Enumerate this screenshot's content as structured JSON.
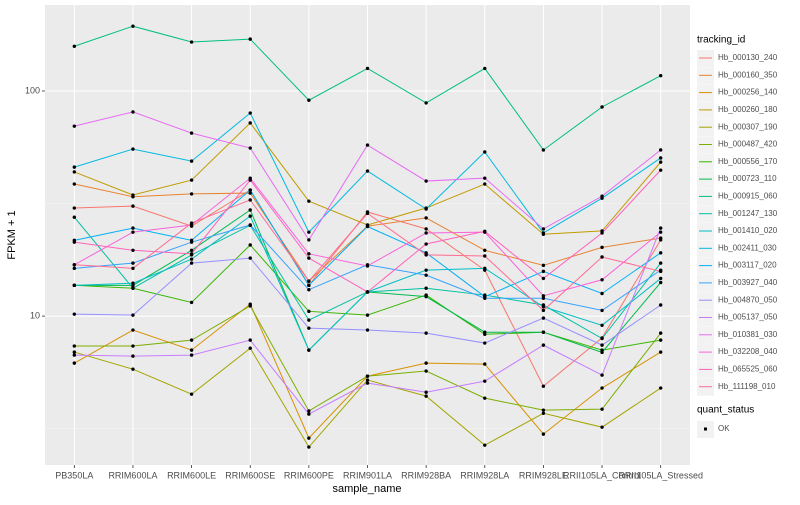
{
  "chart_data": {
    "type": "line",
    "x_label": "sample_name",
    "y_label": "FPKM + 1",
    "legend_title": "tracking_id",
    "legend_position": "right",
    "log_y": true,
    "grid": true,
    "ylim": [
      2.18,
      241
    ],
    "yticks": [
      10,
      100
    ],
    "point_legend": {
      "title": "quant_status",
      "levels": [
        "OK"
      ],
      "color": "#000000"
    },
    "categories": [
      "PB350LA",
      "RRIM600LA",
      "RRIM600LE",
      "RRIM600SE",
      "RRIM600PE",
      "RRIM901LA",
      "RRIM928BA",
      "RRIM928LA",
      "RRIM928LE",
      "RRII105LA_Control",
      "RRII105LA_Stressed"
    ],
    "series": [
      {
        "name": "Hb_000130_240",
        "color": "#F8766D",
        "values": [
          30.2,
          30.8,
          25.1,
          36.3,
          13.7,
          29,
          24.4,
          16,
          4.88,
          8,
          21.8
        ]
      },
      {
        "name": "Hb_000160_350",
        "color": "#EA8331",
        "values": [
          38.6,
          33.9,
          34.9,
          35.2,
          14.3,
          25.1,
          27.3,
          19.6,
          16.8,
          20.2,
          22.2
        ]
      },
      {
        "name": "Hb_000256_140",
        "color": "#D89000",
        "values": [
          6.18,
          8.67,
          7.06,
          11.3,
          2.87,
          5.41,
          6.18,
          6.12,
          2.99,
          4.79,
          6.92
        ]
      },
      {
        "name": "Hb_000260_180",
        "color": "#C09B00",
        "values": [
          43.7,
          34.5,
          40.2,
          72.1,
          32.4,
          25.4,
          30.2,
          38.6,
          23.1,
          23.9,
          48.3
        ]
      },
      {
        "name": "Hb_000307_190",
        "color": "#A3A500",
        "values": [
          6.92,
          5.81,
          4.5,
          7.2,
          2.62,
          5.2,
          4.41,
          2.67,
          3.7,
          3.21,
          4.79
        ]
      },
      {
        "name": "Hb_000487_420",
        "color": "#7CAE00",
        "values": [
          7.36,
          7.36,
          7.82,
          11.1,
          3.79,
          5.41,
          5.7,
          4.32,
          3.82,
          3.86,
          8.4
        ]
      },
      {
        "name": "Hb_000556_170",
        "color": "#39B600",
        "values": [
          13.7,
          13.3,
          11.5,
          20.7,
          10.5,
          10.1,
          12.4,
          8.3,
          8.48,
          7.06,
          7.82
        ]
      },
      {
        "name": "Hb_000723_110",
        "color": "#00BB4E",
        "values": [
          13.7,
          13.7,
          19.6,
          29.6,
          7.06,
          12.8,
          12.2,
          8.48,
          8.48,
          6.9,
          14.1
        ]
      },
      {
        "name": "Hb_000915_060",
        "color": "#00BF7D",
        "values": [
          158,
          194,
          165,
          170,
          91,
          126,
          88.5,
          126,
          54.7,
          84.9,
          117
        ]
      },
      {
        "name": "Hb_001247_130",
        "color": "#00C1A3",
        "values": [
          27.5,
          13.3,
          18.7,
          25.3,
          9.6,
          12.8,
          13.3,
          12.4,
          11.2,
          7.95,
          17.2
        ]
      },
      {
        "name": "Hb_001410_020",
        "color": "#00BFC4",
        "values": [
          13.7,
          14,
          17.9,
          27.8,
          7.06,
          12.8,
          16,
          16.3,
          11,
          9.1,
          14.7
        ]
      },
      {
        "name": "Hb_002411_030",
        "color": "#00BAE0",
        "values": [
          45.9,
          55.2,
          48.8,
          79.8,
          23.6,
          44.1,
          29.9,
          53.6,
          23.4,
          33.4,
          50.4
        ]
      },
      {
        "name": "Hb_003117_020",
        "color": "#00B0F6",
        "values": [
          21.7,
          24.6,
          21.7,
          36.3,
          13.7,
          25,
          19.1,
          12.2,
          15.8,
          12.6,
          19.1
        ]
      },
      {
        "name": "Hb_003927_040",
        "color": "#35A2FF",
        "values": [
          16.3,
          17.2,
          21.3,
          25.4,
          13.1,
          16.9,
          15.2,
          12,
          12,
          10.6,
          16
        ]
      },
      {
        "name": "Hb_004870_050",
        "color": "#9590FF",
        "values": [
          10.2,
          10.1,
          17.2,
          18.1,
          8.84,
          8.67,
          8.4,
          7.59,
          9.8,
          7.43,
          11.2
        ]
      },
      {
        "name": "Hb_005137_050",
        "color": "#C77CFF",
        "values": [
          6.71,
          6.64,
          6.71,
          7.82,
          3.67,
          5.04,
          4.59,
          5.14,
          7.43,
          5.47,
          24.6
        ]
      },
      {
        "name": "Hb_010381_030",
        "color": "#E76BF3",
        "values": [
          69.8,
          80.7,
          65,
          55.8,
          21.8,
          57.5,
          39.8,
          41,
          24.4,
          34.1,
          54.7
        ]
      },
      {
        "name": "Hb_032208_040",
        "color": "#FA62DB",
        "values": [
          16.9,
          23.6,
          25.4,
          41,
          18.9,
          16.7,
          23.4,
          23.6,
          12.3,
          14.5,
          23.6
        ]
      },
      {
        "name": "Hb_065525_060",
        "color": "#FF62BC",
        "values": [
          21.3,
          19.6,
          18.9,
          40.2,
          18.1,
          12.8,
          20.9,
          23.8,
          14.7,
          23.4,
          44.5
        ]
      },
      {
        "name": "Hb_111198_010",
        "color": "#FF6C91",
        "values": [
          16.9,
          16.3,
          25.9,
          32.8,
          14.3,
          28.6,
          18.7,
          18.5,
          10.6,
          18.3,
          15.8
        ]
      }
    ]
  }
}
